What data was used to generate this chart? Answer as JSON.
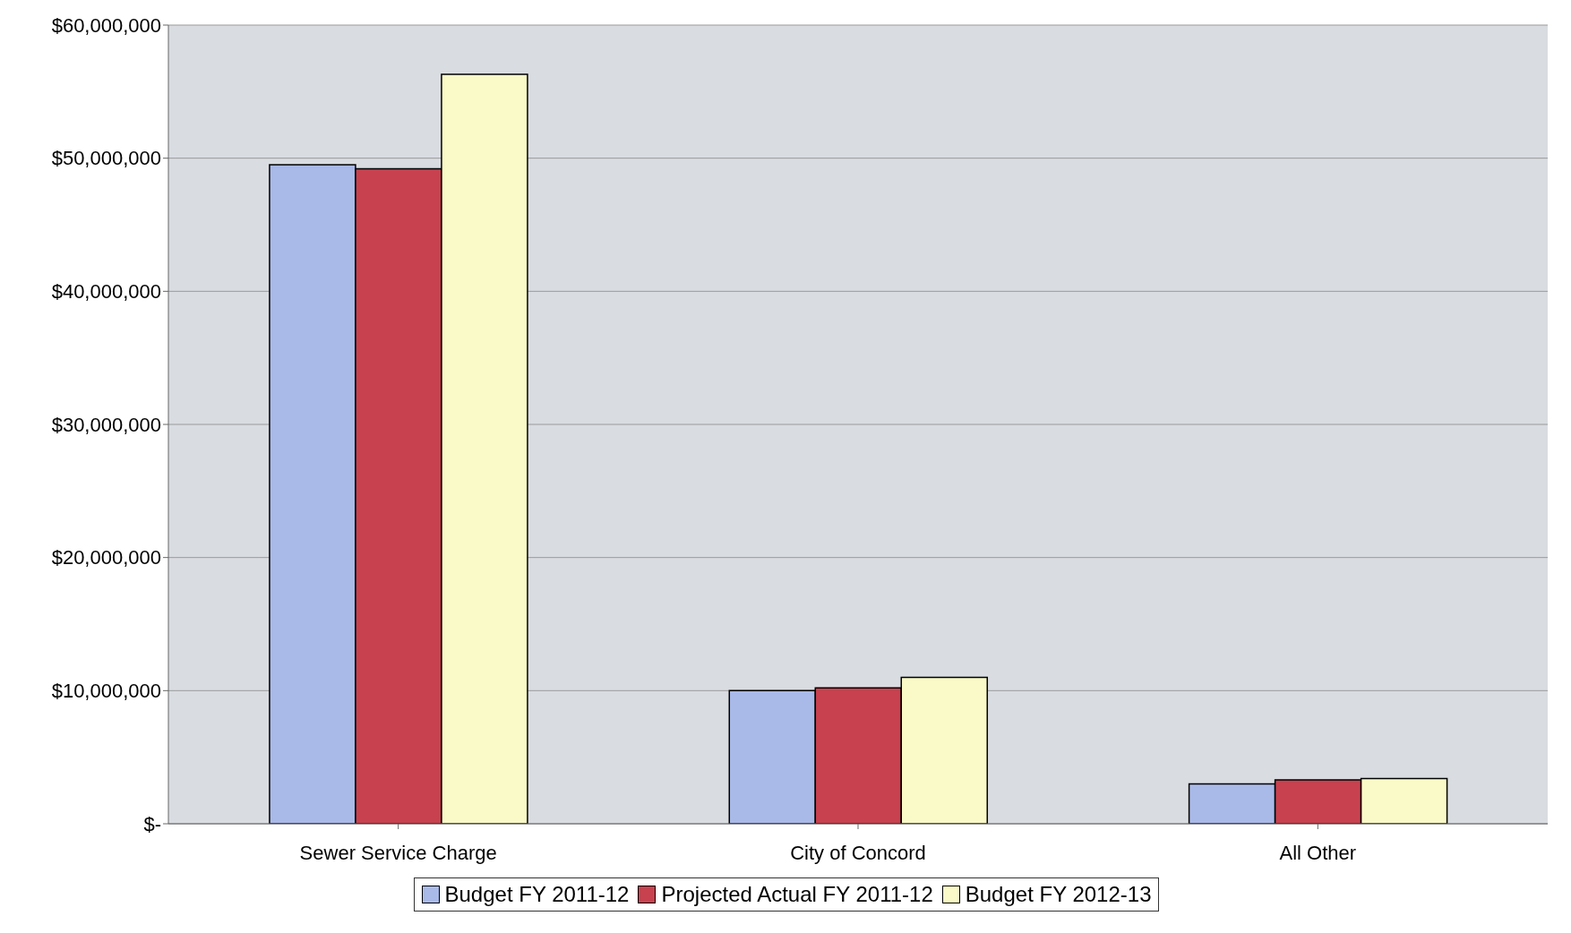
{
  "chart_data": {
    "type": "bar",
    "categories": [
      "Sewer Service Charge",
      "City of Concord",
      "All Other"
    ],
    "series": [
      {
        "name": "Budget FY 2011-12",
        "color": "#a9b9e8",
        "values": [
          49500000,
          10000000,
          3000000
        ]
      },
      {
        "name": "Projected Actual FY 2011-12",
        "color": "#c8414e",
        "values": [
          49200000,
          10200000,
          3300000
        ]
      },
      {
        "name": "Budget FY 2012-13",
        "color": "#fafac8",
        "values": [
          56300000,
          11000000,
          3400000
        ]
      }
    ],
    "ylim": [
      0,
      60000000
    ],
    "yticks": [
      {
        "value": 0,
        "label": "$-"
      },
      {
        "value": 10000000,
        "label": "$10,000,000"
      },
      {
        "value": 20000000,
        "label": "$20,000,000"
      },
      {
        "value": 30000000,
        "label": "$30,000,000"
      },
      {
        "value": 40000000,
        "label": "$40,000,000"
      },
      {
        "value": 50000000,
        "label": "$50,000,000"
      },
      {
        "value": 60000000,
        "label": "$60,000,000"
      }
    ],
    "grid": "y",
    "legend": "bottom"
  }
}
